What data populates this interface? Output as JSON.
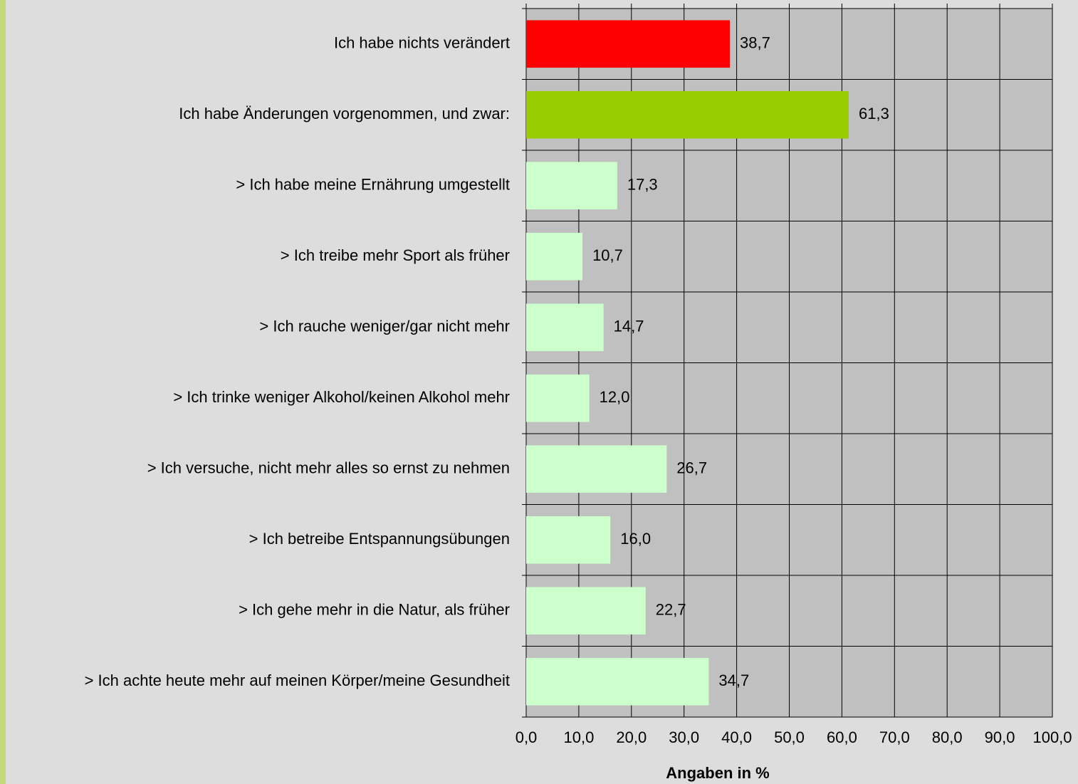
{
  "chart_data": {
    "type": "bar",
    "orientation": "horizontal",
    "categories": [
      "Ich habe nichts verändert",
      "Ich habe Änderungen vorgenommen, und zwar:",
      "> Ich habe meine Ernährung umgestellt",
      "> Ich treibe mehr Sport als früher",
      "> Ich rauche weniger/gar nicht mehr",
      "> Ich trinke weniger Alkohol/keinen Alkohol mehr",
      "> Ich versuche, nicht mehr alles so ernst zu nehmen",
      "> Ich betreibe Entspannungsübungen",
      "> Ich gehe mehr in die Natur, als früher",
      "> Ich achte heute mehr auf meinen Körper/meine Gesundheit"
    ],
    "values": [
      38.7,
      61.3,
      17.3,
      10.7,
      14.7,
      12.0,
      26.7,
      16.0,
      22.7,
      34.7
    ],
    "value_labels": [
      "38,7",
      "61,3",
      "17,3",
      "10,7",
      "14,7",
      "12,0",
      "26,7",
      "16,0",
      "22,7",
      "34,7"
    ],
    "colors": [
      "#ff0000",
      "#99cc00",
      "#ccffcc",
      "#ccffcc",
      "#ccffcc",
      "#ccffcc",
      "#ccffcc",
      "#ccffcc",
      "#ccffcc",
      "#ccffcc"
    ],
    "xlabel": "Angaben in %",
    "xlim": [
      0,
      100
    ],
    "xticks": [
      {
        "value": 0,
        "label": "0,0"
      },
      {
        "value": 10,
        "label": "10,0"
      },
      {
        "value": 20,
        "label": "20,0"
      },
      {
        "value": 30,
        "label": "30,0"
      },
      {
        "value": 40,
        "label": "40,0"
      },
      {
        "value": 50,
        "label": "50,0"
      },
      {
        "value": 60,
        "label": "60,0"
      },
      {
        "value": 70,
        "label": "70,0"
      },
      {
        "value": 80,
        "label": "80,0"
      },
      {
        "value": 90,
        "label": "90,0"
      },
      {
        "value": 100,
        "label": "100,0"
      }
    ],
    "grid": true
  }
}
